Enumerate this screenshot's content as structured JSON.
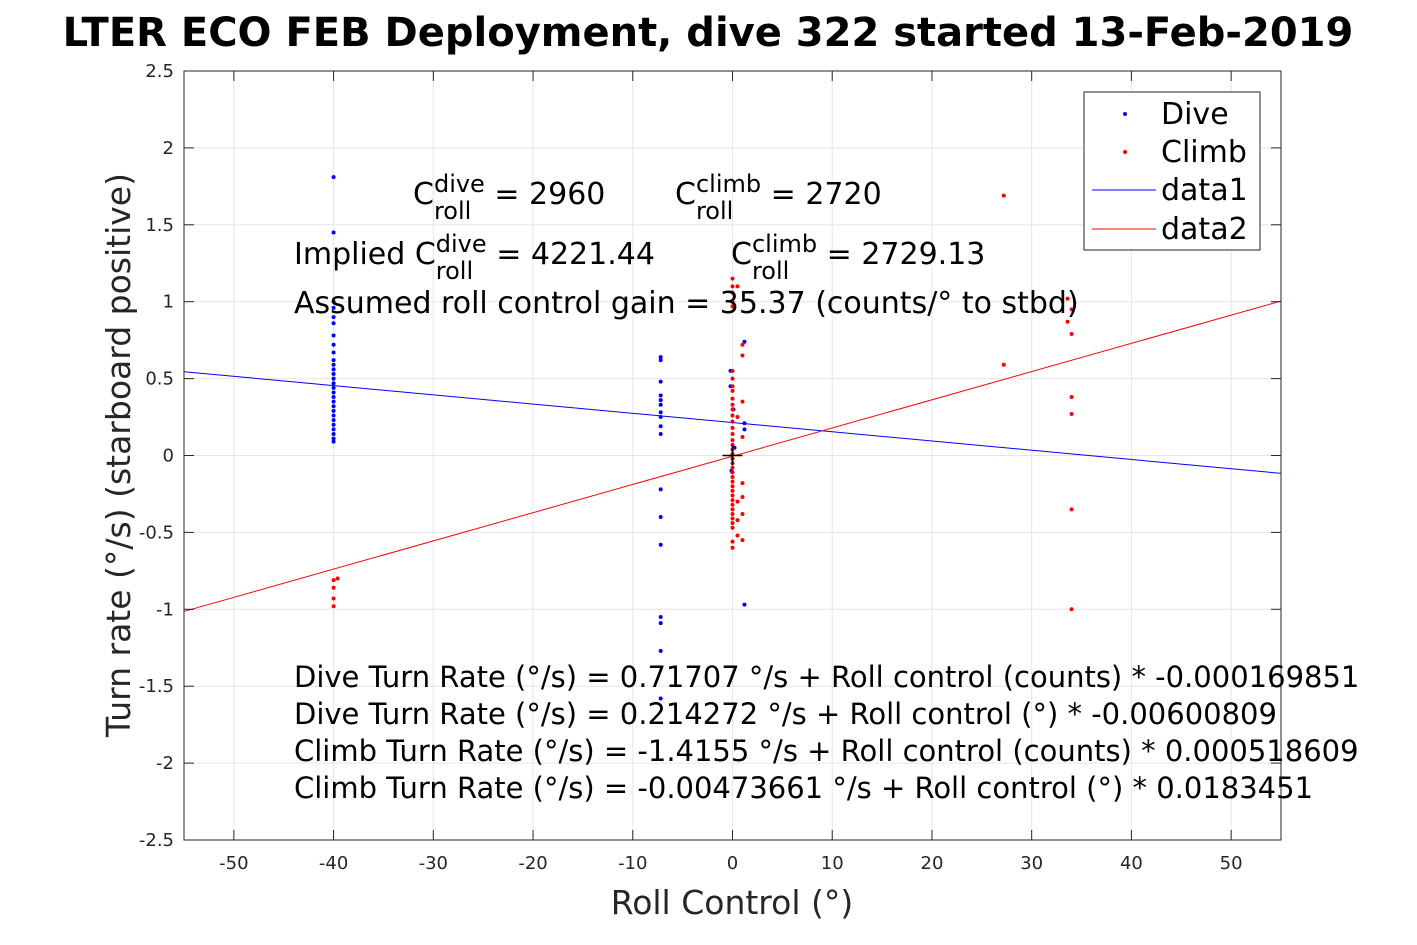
{
  "chart_data": {
    "type": "scatter",
    "title": "LTER ECO FEB Deployment, dive 322 started 13-Feb-2019",
    "xlabel": "Roll Control (°)",
    "ylabel": "Turn rate (°/s) (starboard positive)",
    "xlim": [
      -55,
      55
    ],
    "ylim": [
      -2.5,
      2.5
    ],
    "x_ticks": [
      -50,
      -40,
      -30,
      -20,
      -10,
      0,
      10,
      20,
      30,
      40,
      50
    ],
    "y_ticks": [
      -2.5,
      -2,
      -1.5,
      -1,
      -0.5,
      0,
      0.5,
      1,
      1.5,
      2,
      2.5
    ],
    "x_tick_labels": [
      "-50",
      "-40",
      "-30",
      "-20",
      "-10",
      "0",
      "10",
      "20",
      "30",
      "40",
      "50"
    ],
    "y_tick_labels": [
      "-2.5",
      "-2",
      "-1.5",
      "-1",
      "-0.5",
      "0",
      "0.5",
      "1",
      "1.5",
      "2",
      "2.5"
    ],
    "grid": true,
    "legend_position": "top-right",
    "colors": {
      "dive": "#0000ff",
      "climb": "#ff0000",
      "marker": "#000000",
      "grid": "#e6e6e6",
      "axes": "#262626"
    },
    "series": [
      {
        "name": "Dive",
        "kind": "points",
        "color": "#0000ff",
        "points": [
          [
            -40,
            1.81
          ],
          [
            -40,
            1.45
          ],
          [
            -40,
            1.0
          ],
          [
            -40,
            0.96
          ],
          [
            -40,
            0.9
          ],
          [
            -40,
            0.86
          ],
          [
            -40,
            0.78
          ],
          [
            -40,
            0.72
          ],
          [
            -40,
            0.67
          ],
          [
            -40,
            0.62
          ],
          [
            -40,
            0.59
          ],
          [
            -40,
            0.56
          ],
          [
            -40,
            0.53
          ],
          [
            -40,
            0.5
          ],
          [
            -40,
            0.47
          ],
          [
            -40,
            0.44
          ],
          [
            -40,
            0.41
          ],
          [
            -40,
            0.38
          ],
          [
            -40,
            0.35
          ],
          [
            -40,
            0.32
          ],
          [
            -40,
            0.29
          ],
          [
            -40,
            0.26
          ],
          [
            -40,
            0.23
          ],
          [
            -40,
            0.2
          ],
          [
            -40,
            0.17
          ],
          [
            -40,
            0.14
          ],
          [
            -40,
            0.11
          ],
          [
            -40,
            0.09
          ],
          [
            -7.2,
            0.64
          ],
          [
            -7.2,
            0.62
          ],
          [
            -7.2,
            0.48
          ],
          [
            -7.2,
            0.39
          ],
          [
            -7.2,
            0.36
          ],
          [
            -7.2,
            0.33
          ],
          [
            -7.2,
            0.28
          ],
          [
            -7.2,
            0.25
          ],
          [
            -7.2,
            0.19
          ],
          [
            -7.2,
            0.14
          ],
          [
            -7.2,
            -0.22
          ],
          [
            -7.2,
            -0.4
          ],
          [
            -7.2,
            -0.58
          ],
          [
            -7.2,
            -1.05
          ],
          [
            -7.2,
            -1.09
          ],
          [
            -7.2,
            -1.27
          ],
          [
            -7.2,
            -1.58
          ],
          [
            1.2,
            0.74
          ],
          [
            1.2,
            0.21
          ],
          [
            1.2,
            0.17
          ],
          [
            1.2,
            -0.97
          ],
          [
            -0.2,
            0.55
          ],
          [
            -0.2,
            0.45
          ],
          [
            0.1,
            0.3
          ],
          [
            0.2,
            0.05
          ],
          [
            -0.1,
            -0.1
          ]
        ]
      },
      {
        "name": "Climb",
        "kind": "points",
        "color": "#ff0000",
        "points": [
          [
            -40,
            -0.81
          ],
          [
            -40,
            -0.86
          ],
          [
            -40,
            -0.93
          ],
          [
            -40,
            -0.98
          ],
          [
            -39.6,
            -0.8
          ],
          [
            0,
            1.15
          ],
          [
            0,
            1.1
          ],
          [
            0,
            1.06
          ],
          [
            0,
            1.0
          ],
          [
            0,
            0.97
          ],
          [
            0,
            0.55
          ],
          [
            0,
            0.5
          ],
          [
            0,
            0.45
          ],
          [
            0,
            0.42
          ],
          [
            0,
            0.37
          ],
          [
            0,
            0.33
          ],
          [
            0,
            0.3
          ],
          [
            0,
            0.26
          ],
          [
            0,
            0.22
          ],
          [
            0,
            0.18
          ],
          [
            0,
            0.14
          ],
          [
            0,
            0.1
          ],
          [
            0,
            0.07
          ],
          [
            0,
            0.04
          ],
          [
            0,
            0.01
          ],
          [
            0,
            -0.02
          ],
          [
            0,
            -0.05
          ],
          [
            0,
            -0.08
          ],
          [
            0,
            -0.11
          ],
          [
            0,
            -0.14
          ],
          [
            0,
            -0.17
          ],
          [
            0,
            -0.2
          ],
          [
            0,
            -0.23
          ],
          [
            0,
            -0.26
          ],
          [
            0,
            -0.29
          ],
          [
            0,
            -0.32
          ],
          [
            0,
            -0.35
          ],
          [
            0,
            -0.38
          ],
          [
            0,
            -0.41
          ],
          [
            0,
            -0.44
          ],
          [
            0,
            -0.47
          ],
          [
            0,
            -0.56
          ],
          [
            0,
            -0.6
          ],
          [
            0.5,
            -0.52
          ],
          [
            0.5,
            1.1
          ],
          [
            0.5,
            0.25
          ],
          [
            0.5,
            -0.3
          ],
          [
            0.5,
            -0.42
          ],
          [
            1.0,
            0.72
          ],
          [
            1.0,
            0.65
          ],
          [
            1.0,
            0.35
          ],
          [
            1.0,
            0.12
          ],
          [
            1.0,
            -0.18
          ],
          [
            1.0,
            -0.27
          ],
          [
            1.0,
            -0.38
          ],
          [
            1.0,
            -0.55
          ],
          [
            27.2,
            1.69
          ],
          [
            27.2,
            0.59
          ],
          [
            33.6,
            1.02
          ],
          [
            33.6,
            0.87
          ],
          [
            34,
            0.95
          ],
          [
            34,
            0.79
          ],
          [
            34,
            0.38
          ],
          [
            34,
            0.27
          ],
          [
            34,
            -0.35
          ],
          [
            34,
            -1.0
          ]
        ]
      },
      {
        "name": "data1",
        "kind": "line",
        "color": "#0000ff",
        "points": [
          [
            -55,
            0.5447
          ],
          [
            55,
            -0.1161
          ]
        ]
      },
      {
        "name": "data2",
        "kind": "line",
        "color": "#ff0000",
        "points": [
          [
            -55,
            -1.0139
          ],
          [
            55,
            1.0044
          ]
        ]
      }
    ],
    "marker": {
      "kind": "plus",
      "point": [
        0,
        0
      ]
    },
    "annotations": {
      "c_roll_dive": {
        "prefix": "C",
        "sup": "dive",
        "sub": "roll",
        "suffix": " = 2960"
      },
      "c_roll_climb": {
        "prefix": "C",
        "sup": "climb",
        "sub": "roll",
        "suffix": " = 2720"
      },
      "implied_dive": {
        "prefix": "Implied C",
        "sup": "dive",
        "sub": "roll",
        "suffix": " = 4221.44"
      },
      "implied_climb": {
        "prefix": "C",
        "sup": "climb",
        "sub": "roll",
        "suffix": " = 2729.13"
      },
      "gain": "Assumed roll control gain = 35.37 (counts/° to stbd)",
      "fit_lines": [
        "Dive Turn Rate (°/s) = 0.71707 °/s + Roll control (counts) * -0.000169851",
        "Dive Turn Rate (°/s) = 0.214272 °/s + Roll control (°) * -0.00600809",
        "Climb Turn Rate (°/s) = -1.4155 °/s + Roll control (counts) * 0.000518609",
        "Climb Turn Rate (°/s) = -0.00473661 °/s + Roll control (°) * 0.0183451"
      ]
    }
  }
}
